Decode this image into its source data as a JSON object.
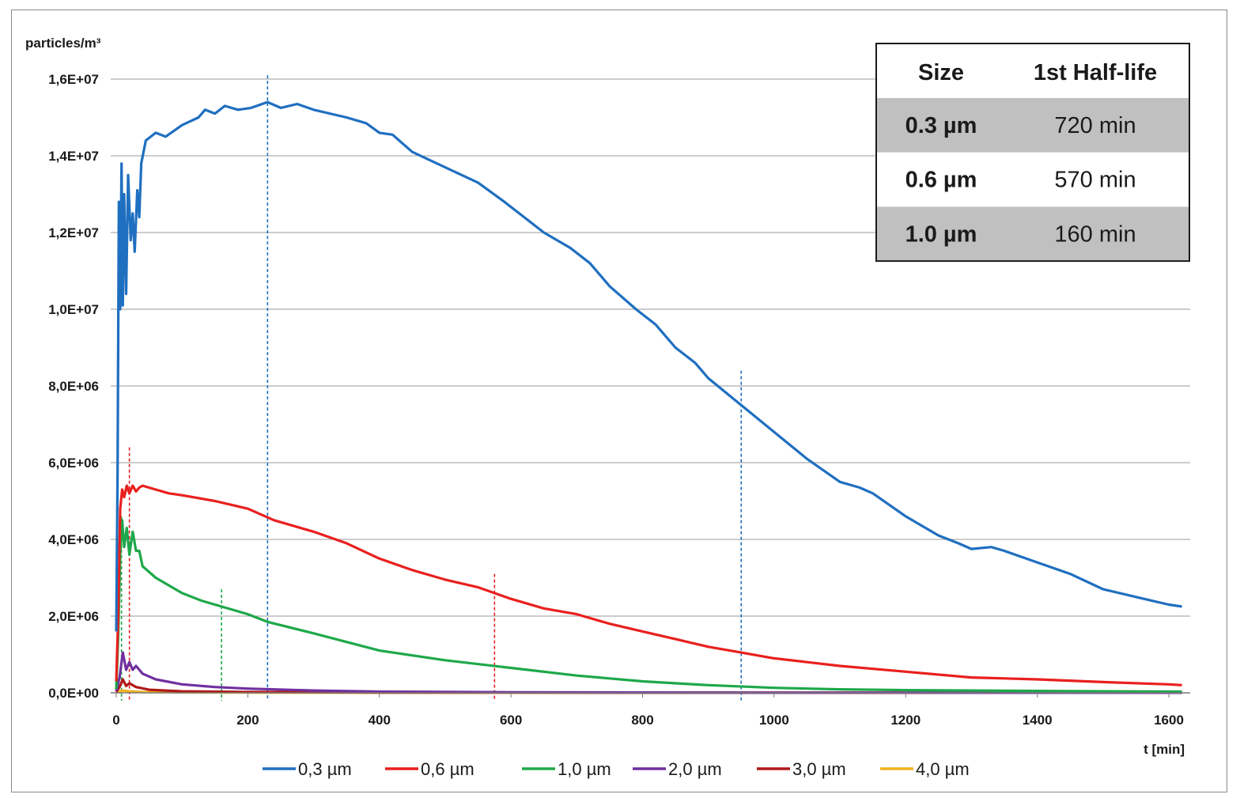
{
  "chart_data": {
    "type": "line",
    "ylabel": "particles/m³",
    "xlabel": "t [min]",
    "xlim": [
      0,
      1650
    ],
    "ylim": [
      0,
      16000000
    ],
    "x_ticks": [
      "0",
      "200",
      "400",
      "600",
      "800",
      "1000",
      "1200",
      "1400",
      "1600"
    ],
    "x_tick_values": [
      0,
      200,
      400,
      600,
      800,
      1000,
      1200,
      1400,
      1600
    ],
    "y_ticks": [
      "0,0E+00",
      "2,0E+06",
      "4,0E+06",
      "6,0E+06",
      "8,0E+06",
      "1,0E+07",
      "1,2E+07",
      "1,4E+07",
      "1,6E+07"
    ],
    "y_tick_values": [
      0,
      2000000,
      4000000,
      6000000,
      8000000,
      10000000,
      12000000,
      14000000,
      16000000
    ],
    "grid": "horizontal",
    "legend_position": "bottom",
    "series": [
      {
        "name": "0,3 µm",
        "color": "#1f6fc0",
        "points": [
          [
            0,
            1600000
          ],
          [
            2,
            5800000
          ],
          [
            4,
            12800000
          ],
          [
            6,
            10000000
          ],
          [
            8,
            13800000
          ],
          [
            10,
            10100000
          ],
          [
            12,
            13000000
          ],
          [
            15,
            10400000
          ],
          [
            18,
            13500000
          ],
          [
            22,
            11800000
          ],
          [
            25,
            12500000
          ],
          [
            28,
            11500000
          ],
          [
            32,
            13100000
          ],
          [
            35,
            12400000
          ],
          [
            38,
            13800000
          ],
          [
            45,
            14400000
          ],
          [
            60,
            14600000
          ],
          [
            75,
            14500000
          ],
          [
            100,
            14800000
          ],
          [
            125,
            15000000
          ],
          [
            135,
            15200000
          ],
          [
            150,
            15100000
          ],
          [
            165,
            15300000
          ],
          [
            185,
            15200000
          ],
          [
            205,
            15250000
          ],
          [
            230,
            15400000
          ],
          [
            250,
            15250000
          ],
          [
            275,
            15350000
          ],
          [
            300,
            15200000
          ],
          [
            350,
            15000000
          ],
          [
            380,
            14850000
          ],
          [
            400,
            14600000
          ],
          [
            420,
            14550000
          ],
          [
            450,
            14100000
          ],
          [
            500,
            13700000
          ],
          [
            550,
            13300000
          ],
          [
            590,
            12800000
          ],
          [
            620,
            12400000
          ],
          [
            650,
            12000000
          ],
          [
            690,
            11600000
          ],
          [
            720,
            11200000
          ],
          [
            750,
            10600000
          ],
          [
            790,
            10000000
          ],
          [
            820,
            9600000
          ],
          [
            850,
            9000000
          ],
          [
            880,
            8600000
          ],
          [
            900,
            8200000
          ],
          [
            950,
            7500000
          ],
          [
            1000,
            6800000
          ],
          [
            1050,
            6100000
          ],
          [
            1100,
            5500000
          ],
          [
            1130,
            5350000
          ],
          [
            1150,
            5200000
          ],
          [
            1200,
            4600000
          ],
          [
            1250,
            4100000
          ],
          [
            1280,
            3900000
          ],
          [
            1300,
            3750000
          ],
          [
            1330,
            3800000
          ],
          [
            1350,
            3700000
          ],
          [
            1400,
            3400000
          ],
          [
            1450,
            3100000
          ],
          [
            1500,
            2700000
          ],
          [
            1550,
            2500000
          ],
          [
            1600,
            2300000
          ],
          [
            1620,
            2250000
          ]
        ]
      },
      {
        "name": "0,6 µm",
        "color": "#e8201e",
        "points": [
          [
            0,
            300000
          ],
          [
            3,
            2000000
          ],
          [
            6,
            4800000
          ],
          [
            9,
            5300000
          ],
          [
            12,
            5100000
          ],
          [
            16,
            5400000
          ],
          [
            20,
            5200000
          ],
          [
            25,
            5400000
          ],
          [
            30,
            5250000
          ],
          [
            35,
            5350000
          ],
          [
            40,
            5400000
          ],
          [
            60,
            5300000
          ],
          [
            80,
            5200000
          ],
          [
            100,
            5150000
          ],
          [
            150,
            5000000
          ],
          [
            200,
            4800000
          ],
          [
            240,
            4500000
          ],
          [
            300,
            4200000
          ],
          [
            350,
            3900000
          ],
          [
            400,
            3500000
          ],
          [
            450,
            3200000
          ],
          [
            500,
            2950000
          ],
          [
            550,
            2750000
          ],
          [
            575,
            2600000
          ],
          [
            600,
            2450000
          ],
          [
            650,
            2200000
          ],
          [
            700,
            2050000
          ],
          [
            750,
            1800000
          ],
          [
            800,
            1600000
          ],
          [
            850,
            1400000
          ],
          [
            900,
            1200000
          ],
          [
            950,
            1050000
          ],
          [
            1000,
            900000
          ],
          [
            1100,
            700000
          ],
          [
            1200,
            550000
          ],
          [
            1300,
            400000
          ],
          [
            1400,
            350000
          ],
          [
            1500,
            280000
          ],
          [
            1600,
            220000
          ],
          [
            1620,
            200000
          ]
        ]
      },
      {
        "name": "1,0 µm",
        "color": "#1ea84a",
        "points": [
          [
            0,
            100000
          ],
          [
            3,
            1500000
          ],
          [
            6,
            3600000
          ],
          [
            9,
            4500000
          ],
          [
            12,
            3800000
          ],
          [
            16,
            4300000
          ],
          [
            20,
            3600000
          ],
          [
            25,
            4200000
          ],
          [
            30,
            3700000
          ],
          [
            35,
            3700000
          ],
          [
            40,
            3300000
          ],
          [
            60,
            3000000
          ],
          [
            80,
            2800000
          ],
          [
            100,
            2600000
          ],
          [
            130,
            2400000
          ],
          [
            160,
            2250000
          ],
          [
            200,
            2050000
          ],
          [
            230,
            1850000
          ],
          [
            300,
            1550000
          ],
          [
            400,
            1100000
          ],
          [
            500,
            850000
          ],
          [
            600,
            650000
          ],
          [
            700,
            450000
          ],
          [
            800,
            300000
          ],
          [
            900,
            200000
          ],
          [
            1000,
            130000
          ],
          [
            1100,
            90000
          ],
          [
            1200,
            70000
          ],
          [
            1300,
            60000
          ],
          [
            1400,
            50000
          ],
          [
            1500,
            40000
          ],
          [
            1620,
            30000
          ]
        ]
      },
      {
        "name": "2,0 µm",
        "color": "#7030a0",
        "points": [
          [
            0,
            50000
          ],
          [
            5,
            400000
          ],
          [
            10,
            1050000
          ],
          [
            15,
            600000
          ],
          [
            20,
            800000
          ],
          [
            25,
            600000
          ],
          [
            30,
            700000
          ],
          [
            40,
            500000
          ],
          [
            60,
            350000
          ],
          [
            100,
            220000
          ],
          [
            150,
            150000
          ],
          [
            200,
            110000
          ],
          [
            300,
            60000
          ],
          [
            400,
            30000
          ],
          [
            600,
            15000
          ],
          [
            800,
            8000
          ],
          [
            1000,
            5000
          ],
          [
            1620,
            3000
          ]
        ]
      },
      {
        "name": "3,0 µm",
        "color": "#b01818",
        "points": [
          [
            0,
            20000
          ],
          [
            5,
            150000
          ],
          [
            10,
            350000
          ],
          [
            15,
            180000
          ],
          [
            20,
            250000
          ],
          [
            30,
            150000
          ],
          [
            50,
            80000
          ],
          [
            100,
            40000
          ],
          [
            200,
            20000
          ],
          [
            400,
            8000
          ],
          [
            800,
            4000
          ],
          [
            1620,
            2000
          ]
        ]
      },
      {
        "name": "4,0 µm",
        "color": "#f2b21c",
        "points": [
          [
            0,
            5000
          ],
          [
            10,
            60000
          ],
          [
            20,
            40000
          ],
          [
            40,
            20000
          ],
          [
            100,
            10000
          ],
          [
            300,
            5000
          ],
          [
            1620,
            2000
          ]
        ]
      }
    ],
    "annotations": [
      {
        "color": "#1f6fc0",
        "x": 230,
        "y_top": 16100000
      },
      {
        "color": "#1f6fc0",
        "x": 950,
        "y_top": 8400000
      },
      {
        "color": "#e8201e",
        "x": 20,
        "y_top": 6400000
      },
      {
        "color": "#e8201e",
        "x": 575,
        "y_top": 3100000
      },
      {
        "color": "#1ea84a",
        "x": 8,
        "y_top": 4600000
      },
      {
        "color": "#1ea84a",
        "x": 160,
        "y_top": 2700000
      }
    ],
    "table": {
      "headers": [
        "Size",
        "1st Half-life"
      ],
      "rows": [
        {
          "size": "0.3 µm",
          "halflife": "720 min",
          "shade": "#c0c0c0"
        },
        {
          "size": "0.6 µm",
          "halflife": "570 min",
          "shade": "#ffffff"
        },
        {
          "size": "1.0 µm",
          "halflife": "160 min",
          "shade": "#c0c0c0"
        }
      ]
    }
  }
}
